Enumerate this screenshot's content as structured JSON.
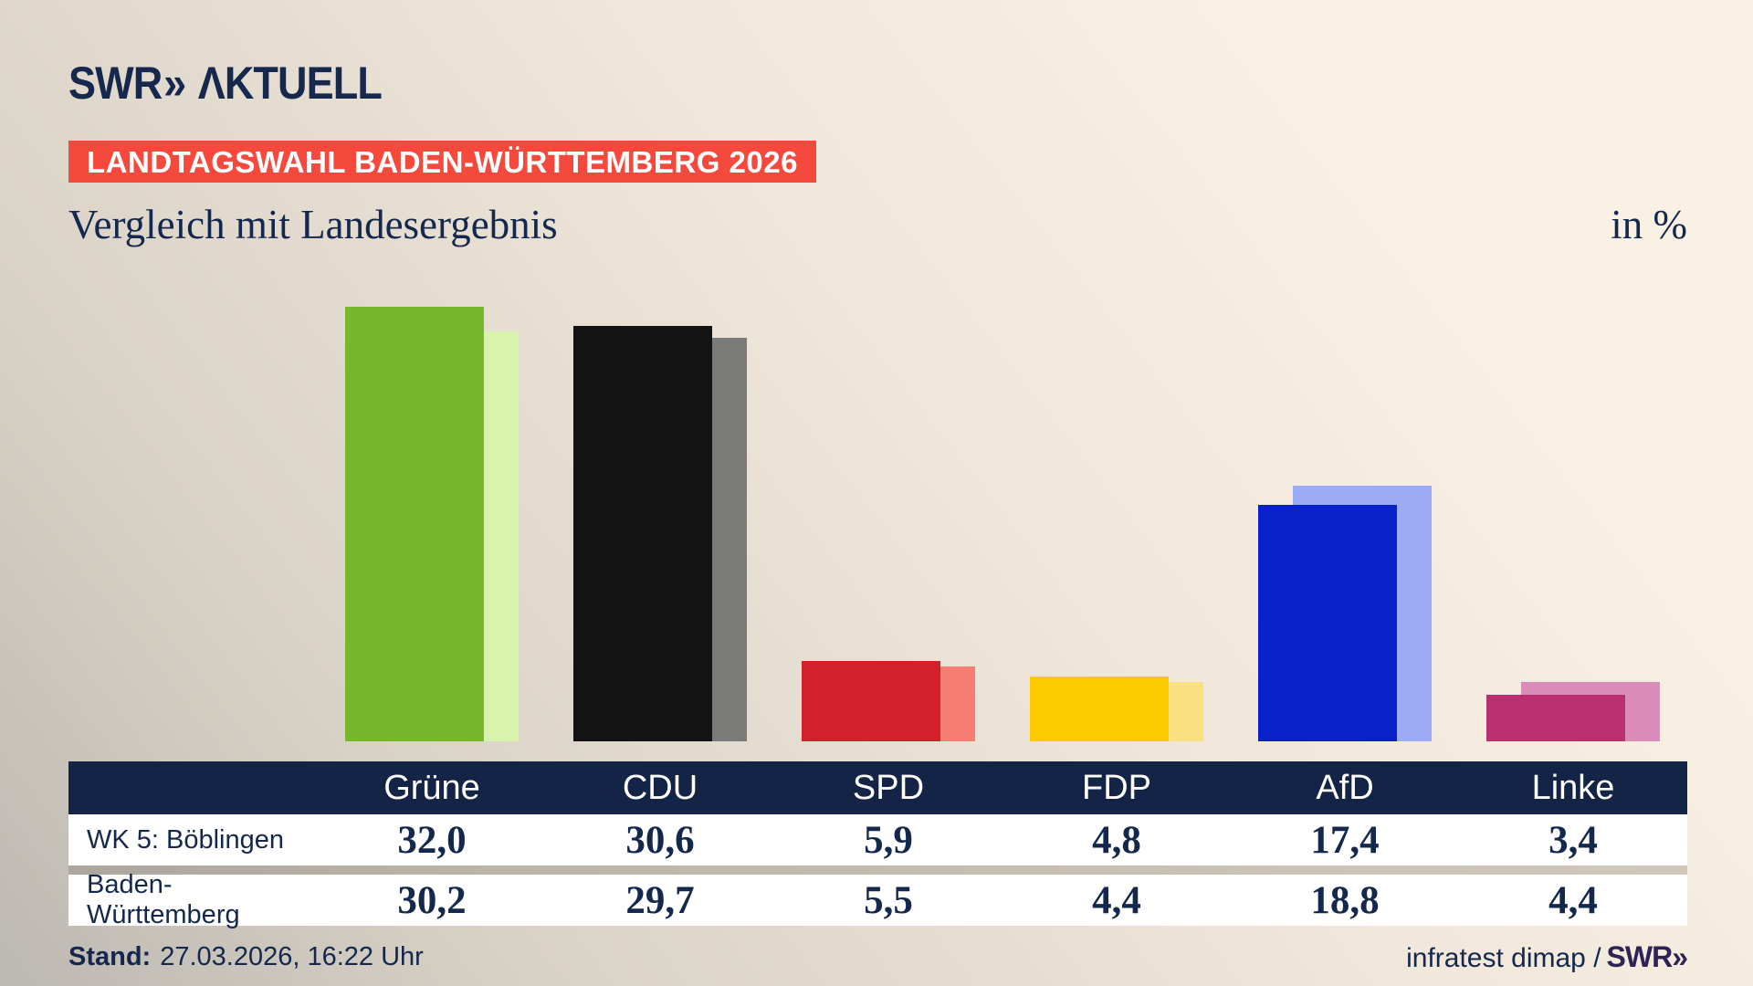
{
  "brand": {
    "swr": "SWR",
    "chevrons": "»",
    "aktuell": "ΛKTUELL"
  },
  "badge": {
    "label": "LANDTAGSWAHL BADEN-WÜRTTEMBERG 2026",
    "bg": "#f4493c"
  },
  "title": "Vergleich mit Landesergebnis",
  "unit_label": "in %",
  "chart_data": {
    "type": "bar",
    "title": "Vergleich mit Landesergebnis",
    "xlabel": "",
    "ylabel": "in %",
    "categories": [
      "Grüne",
      "CDU",
      "SPD",
      "FDP",
      "AfD",
      "Linke"
    ],
    "series": [
      {
        "name": "WK 5: Böblingen",
        "values": [
          32.0,
          30.6,
          5.9,
          4.8,
          17.4,
          3.4
        ]
      },
      {
        "name": "Baden-Württemberg",
        "values": [
          30.2,
          29.7,
          5.5,
          4.4,
          18.8,
          4.4
        ]
      }
    ],
    "colors_main": [
      "#76b72b",
      "#131313",
      "#d2212b",
      "#fdca00",
      "#0821c9",
      "#b93071"
    ],
    "colors_light": [
      "#d8f3ab",
      "#7a7a78",
      "#f67d72",
      "#fae180",
      "#9cabf6",
      "#db8cbb"
    ],
    "ylim": [
      0,
      32
    ],
    "grid": false,
    "legend_position": "none",
    "value_labels": "shown in table below chart"
  },
  "table": {
    "header": [
      "",
      "Grüne",
      "CDU",
      "SPD",
      "FDP",
      "AfD",
      "Linke"
    ],
    "rows": [
      {
        "label": "WK 5: Böblingen",
        "display": [
          "32,0",
          "30,6",
          "5,9",
          "4,8",
          "17,4",
          "3,4"
        ]
      },
      {
        "label": "Baden-Württemberg",
        "display": [
          "30,2",
          "29,7",
          "5,5",
          "4,4",
          "18,8",
          "4,4"
        ]
      }
    ],
    "header_bg": "#132446",
    "row_bg": "#ffffff",
    "text_color": "#14274d"
  },
  "footer": {
    "stand_label": "Stand:",
    "stand_value": "27.03.2026, 16:22 Uhr",
    "source_text": "infratest dimap /",
    "source_brand": "SWR»"
  }
}
